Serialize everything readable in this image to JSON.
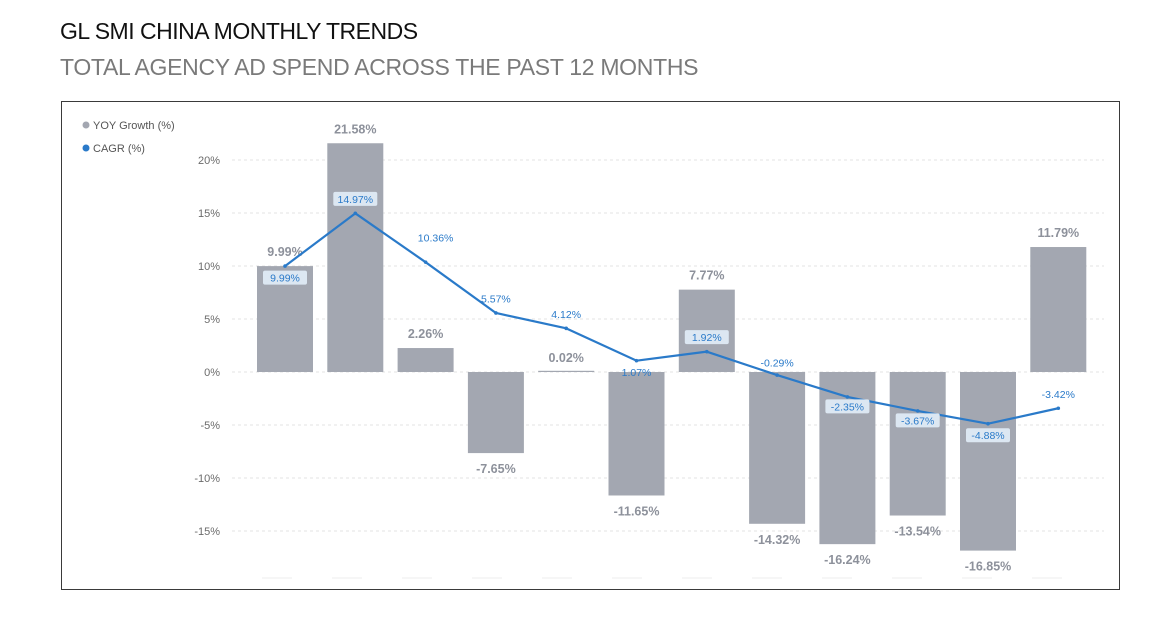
{
  "header": {
    "title": "GL SMI CHINA MONTHLY TRENDS",
    "subtitle": "TOTAL AGENCY AD SPEND ACROSS THE PAST 12 MONTHS"
  },
  "chart_data": {
    "type": "bar",
    "title": "GL SMI CHINA MONTHLY TRENDS",
    "subtitle": "TOTAL AGENCY AD SPEND ACROSS THE PAST 12 MONTHS",
    "categories": [
      "",
      "",
      "",
      "",
      "",
      "",
      "",
      "",
      "",
      "",
      "",
      ""
    ],
    "ylim": [
      -18.5,
      22
    ],
    "y_ticks": [
      20,
      15,
      10,
      5,
      0,
      -5,
      -10,
      -15
    ],
    "y_tick_labels": [
      "20%",
      "15%",
      "10%",
      "5%",
      "0%",
      "-5%",
      "-10%",
      "-15%"
    ],
    "grid": true,
    "legend_position": "top-left",
    "series": [
      {
        "name": "YOY Growth (%)",
        "type": "bar",
        "color": "#a3a7b1",
        "values": [
          9.99,
          21.58,
          2.26,
          -7.65,
          0.02,
          -11.65,
          7.77,
          -14.32,
          -16.24,
          -13.54,
          -16.85,
          11.79
        ],
        "labels": [
          "9.99%",
          "21.58%",
          "2.26%",
          "-7.65%",
          "0.02%",
          "-11.65%",
          "7.77%",
          "-14.32%",
          "-16.24%",
          "-13.54%",
          "-16.85%",
          "11.79%"
        ]
      },
      {
        "name": "CAGR (%)",
        "type": "line",
        "color": "#2a7ac9",
        "values": [
          9.99,
          14.97,
          10.36,
          5.57,
          4.12,
          1.07,
          1.92,
          -0.29,
          -2.35,
          -3.67,
          -4.88,
          -3.42
        ],
        "labels": [
          "9.99%",
          "14.97%",
          "10.36%",
          "5.57%",
          "4.12%",
          "1.07%",
          "1.92%",
          "-0.29%",
          "-2.35%",
          "-3.67%",
          "-4.88%",
          "-3.42%"
        ],
        "boxed": [
          true,
          true,
          false,
          false,
          false,
          false,
          true,
          false,
          true,
          true,
          true,
          false
        ]
      }
    ]
  }
}
